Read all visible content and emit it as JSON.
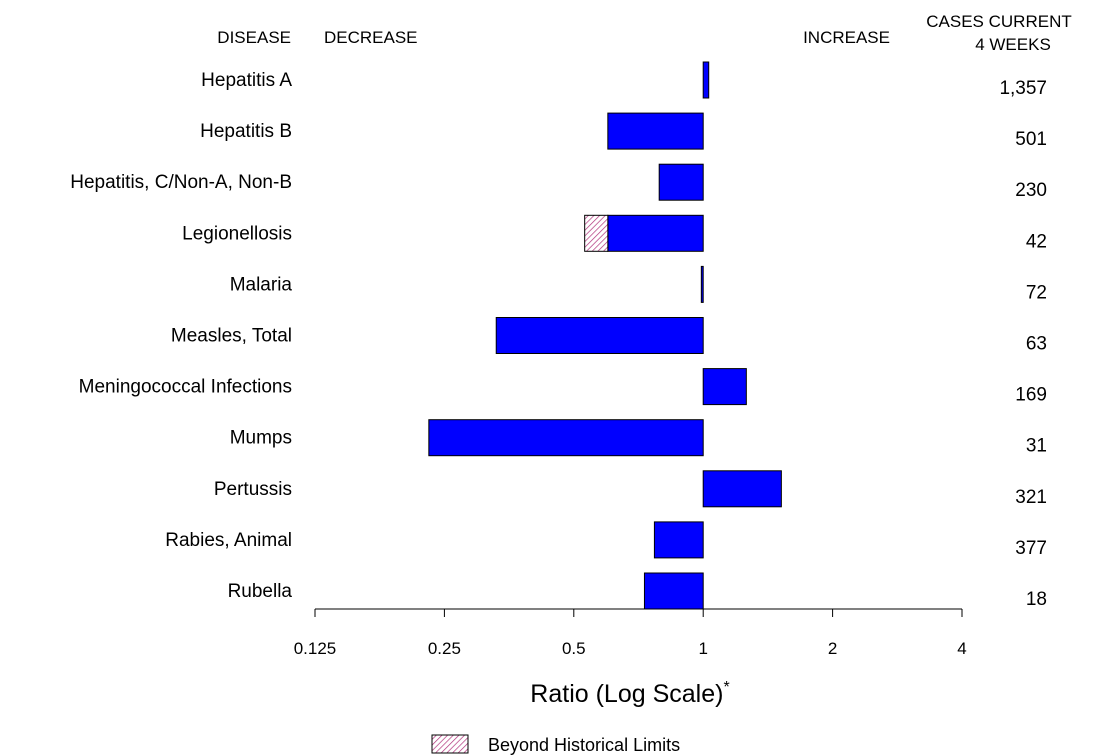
{
  "chart_data": {
    "type": "bar",
    "orientation": "horizontal",
    "x_scale": "log2",
    "headers": {
      "disease": "DISEASE",
      "decrease": "DECREASE",
      "increase": "INCREASE",
      "cases_line1": "CASES CURRENT",
      "cases_line2": "4 WEEKS"
    },
    "categories": [
      "Hepatitis A",
      "Hepatitis B",
      "Hepatitis, C/Non-A, Non-B",
      "Legionellosis",
      "Malaria",
      "Measles, Total",
      "Meningococcal Infections",
      "Mumps",
      "Pertussis",
      "Rabies, Animal",
      "Rubella"
    ],
    "values": [
      1.03,
      0.6,
      0.79,
      0.6,
      0.99,
      0.33,
      1.26,
      0.23,
      1.52,
      0.77,
      0.73
    ],
    "beyond_historical_limits": [
      null,
      null,
      null,
      [
        0.53,
        0.6
      ],
      null,
      null,
      null,
      null,
      null,
      null,
      null
    ],
    "cases_current_4_weeks": [
      "1,357",
      "501",
      "230",
      "42",
      "72",
      "63",
      "169",
      "31",
      "321",
      "377",
      "18"
    ],
    "xticks": [
      0.125,
      0.25,
      0.5,
      1,
      2,
      4
    ],
    "xtick_labels": [
      "0.125",
      "0.25",
      "0.5",
      "1",
      "2",
      "4"
    ],
    "xlim": [
      0.125,
      4
    ],
    "xlabel": "Ratio (Log Scale)",
    "xlabel_superscript": "*",
    "legend": {
      "label": "Beyond Historical Limits",
      "position": "bottom-center"
    },
    "colors": {
      "bar": "#0000ff",
      "bar_edge": "#000000",
      "hatch": "#b0307a",
      "hatch_bg": "#ffffff"
    }
  }
}
